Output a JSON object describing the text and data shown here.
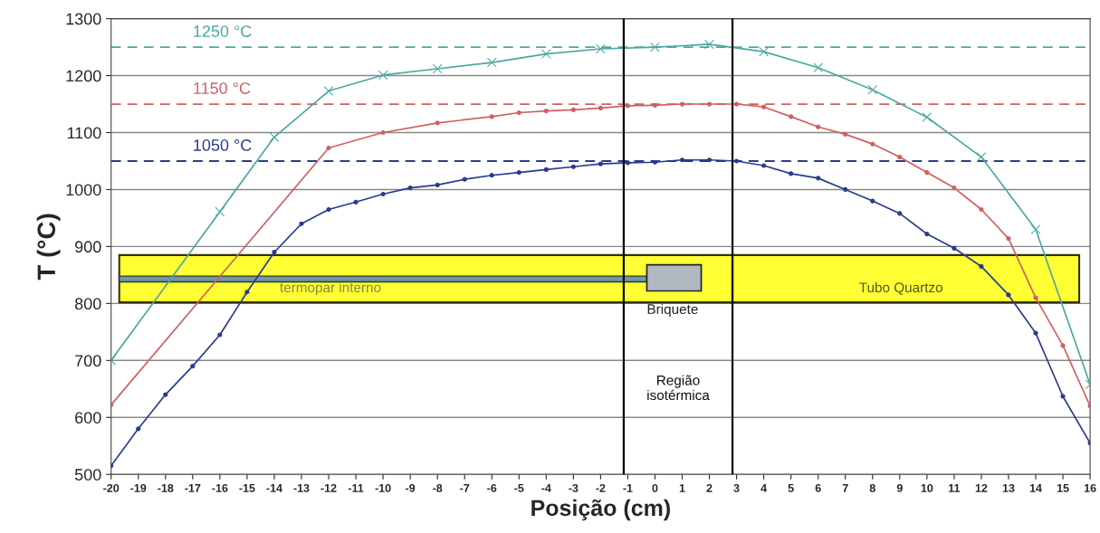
{
  "chart_data": {
    "type": "line",
    "xlabel": "Posição (cm)",
    "ylabel": "T (°C)",
    "xlim": [
      -20,
      16
    ],
    "xticks": [
      -20,
      -19,
      -18,
      -17,
      -16,
      -15,
      -14,
      -13,
      -12,
      -11,
      -10,
      -9,
      -8,
      -7,
      -6,
      -5,
      -4,
      -3,
      -2,
      -1,
      0,
      1,
      2,
      3,
      4,
      5,
      6,
      7,
      8,
      9,
      10,
      11,
      12,
      13,
      14,
      15,
      16
    ],
    "ylim": [
      500,
      1300
    ],
    "yticks": [
      500,
      600,
      700,
      800,
      900,
      1000,
      1100,
      1200,
      1300
    ],
    "grid": "y",
    "legend": false,
    "series": [
      {
        "color": "#4aa8a0",
        "marker": "cross",
        "x": [
          -20,
          -16,
          -14,
          -12,
          -10,
          -8,
          -6,
          -4,
          -2,
          0,
          2,
          4,
          6,
          8,
          10,
          12,
          14,
          16
        ],
        "values": [
          700,
          961,
          1092,
          1173,
          1201,
          1212,
          1223,
          1238,
          1247,
          1250,
          1255,
          1242,
          1214,
          1175,
          1127,
          1057,
          930,
          658
        ]
      },
      {
        "color": "#d06060",
        "marker": "circle",
        "x": [
          -20,
          -12,
          -10,
          -8,
          -6,
          -5,
          -4,
          -3,
          -2,
          -1,
          0,
          1,
          2,
          3,
          4,
          5,
          6,
          7,
          8,
          9,
          10,
          11,
          12,
          13,
          14,
          15,
          16
        ],
        "values": [
          622,
          1073,
          1100,
          1117,
          1128,
          1135,
          1138,
          1140,
          1143,
          1147,
          1148,
          1150,
          1150,
          1150,
          1145,
          1128,
          1110,
          1097,
          1080,
          1057,
          1030,
          1003,
          965,
          914,
          810,
          726,
          620
        ]
      },
      {
        "color": "#283c8c",
        "marker": "circle",
        "x": [
          -20,
          -19,
          -18,
          -17,
          -16,
          -15,
          -14,
          -13,
          -12,
          -11,
          -10,
          -9,
          -8,
          -7,
          -6,
          -5,
          -4,
          -3,
          -2,
          -1,
          0,
          1,
          2,
          3,
          4,
          5,
          6,
          7,
          8,
          9,
          10,
          11,
          12,
          13,
          14,
          15,
          16
        ],
        "values": [
          515,
          580,
          640,
          690,
          745,
          820,
          890,
          940,
          965,
          978,
          992,
          1003,
          1008,
          1018,
          1025,
          1030,
          1035,
          1040,
          1045,
          1047,
          1048,
          1052,
          1052,
          1050,
          1042,
          1028,
          1020,
          1000,
          980,
          958,
          922,
          897,
          865,
          815,
          748,
          637,
          555
        ]
      }
    ],
    "ref_lines": [
      {
        "axis": "y",
        "value": 1250,
        "label": "1250 °C",
        "color": "#4aa8a0",
        "line_style": "dashed"
      },
      {
        "axis": "y",
        "value": 1150,
        "label": "1150 °C",
        "color": "#d06060",
        "line_style": "dashed"
      },
      {
        "axis": "y",
        "value": 1050,
        "label": "1050 °C",
        "color": "#283c8c",
        "line_style": "dashed"
      },
      {
        "axis": "x",
        "value": -1.15,
        "color": "#000000",
        "line_style": "solid"
      },
      {
        "axis": "x",
        "value": 2.85,
        "color": "#000000",
        "line_style": "solid"
      }
    ],
    "annotations": [
      "Região\nisotérmica",
      "termopar interno",
      "Briquete",
      "Tubo Quartzo"
    ]
  }
}
